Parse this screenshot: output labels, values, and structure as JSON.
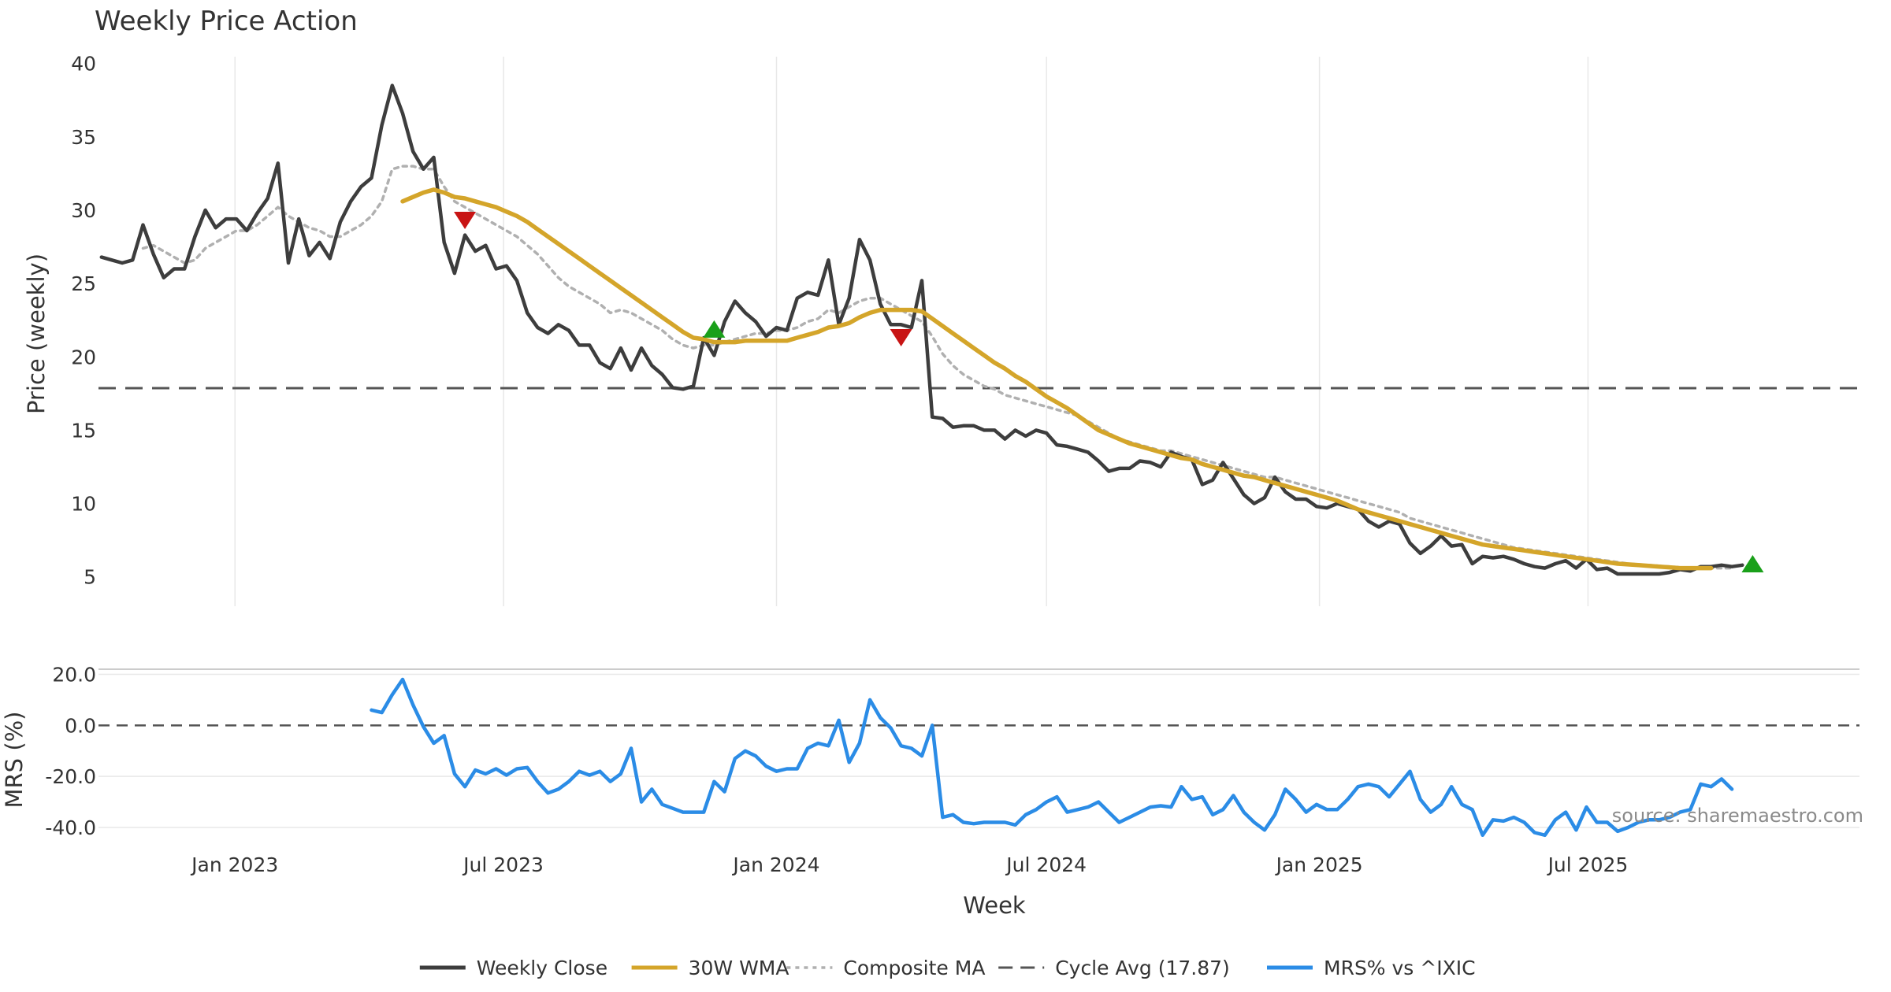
{
  "chart_data": {
    "type": "line",
    "title": "Weekly Price Action",
    "xlabel": "Week",
    "x_ticks": [
      "Jan 2023",
      "Jul 2023",
      "Jan 2024",
      "Jul 2024",
      "Jan 2025",
      "Jul 2025"
    ],
    "x_range": [
      "2022-10-01",
      "2025-12-31"
    ],
    "x_start": "2022-10-03",
    "x_step_days": 7,
    "colors": {
      "close": "#3d3d3d",
      "wma": "#d4a52a",
      "composite": "#b0b0b0",
      "cycle": "#555555",
      "mrs": "#2b8ce6",
      "buy": "#1aa01a",
      "sell": "#c81414",
      "grid": "#e8e8e8"
    },
    "price_panel": {
      "ylabel": "Price (weekly)",
      "ylim": [
        3,
        41
      ],
      "y_ticks": [
        "5",
        "10",
        "15",
        "20",
        "25",
        "30",
        "35",
        "40"
      ],
      "cycle_avg": 17.87,
      "series": [
        {
          "name": "Weekly Close",
          "values": [
            26.8,
            26.6,
            26.4,
            26.6,
            29.0,
            27.0,
            25.4,
            26.0,
            26.0,
            28.2,
            30.0,
            28.8,
            29.4,
            29.4,
            28.6,
            29.8,
            30.8,
            33.2,
            26.4,
            29.4,
            26.9,
            27.8,
            26.7,
            29.2,
            30.6,
            31.6,
            32.2,
            35.8,
            38.5,
            36.6,
            34.0,
            32.8,
            33.6,
            27.8,
            25.7,
            28.3,
            27.2,
            27.6,
            26.0,
            26.2,
            25.2,
            23.0,
            22.0,
            21.6,
            22.2,
            21.8,
            20.8,
            20.8,
            19.6,
            19.2,
            20.6,
            19.1,
            20.6,
            19.4,
            18.8,
            17.9,
            17.8,
            18.0,
            21.3,
            20.1,
            22.4,
            23.8,
            23.0,
            22.4,
            21.4,
            22.0,
            21.8,
            24.0,
            24.4,
            24.2,
            26.6,
            22.2,
            24.0,
            28.0,
            26.6,
            23.6,
            22.2,
            22.2,
            22.0,
            25.2,
            15.9,
            15.8,
            15.2,
            15.3,
            15.3,
            15.0,
            15.0,
            14.4,
            15.0,
            14.6,
            15.0,
            14.8,
            14.0,
            13.9,
            13.7,
            13.5,
            12.9,
            12.2,
            12.4,
            12.4,
            12.9,
            12.8,
            12.5,
            13.5,
            13.2,
            13.0,
            11.3,
            11.6,
            12.8,
            11.7,
            10.6,
            10.0,
            10.4,
            11.8,
            10.8,
            10.3,
            10.3,
            9.8,
            9.7,
            10.0,
            9.8,
            9.6,
            8.8,
            8.4,
            8.8,
            8.6,
            7.3,
            6.6,
            7.1,
            7.8,
            7.1,
            7.2,
            5.9,
            6.4,
            6.3,
            6.4,
            6.2,
            5.9,
            5.7,
            5.6,
            5.9,
            6.1,
            5.6,
            6.2,
            5.5,
            5.6,
            5.2,
            5.2,
            5.2,
            5.2,
            5.2,
            5.3,
            5.5,
            5.4,
            5.7,
            5.7,
            5.8,
            5.7,
            5.8
          ]
        },
        {
          "name": "30W WMA",
          "values": [
            null,
            null,
            null,
            null,
            null,
            null,
            null,
            null,
            null,
            null,
            null,
            null,
            null,
            null,
            null,
            null,
            null,
            null,
            null,
            null,
            null,
            null,
            null,
            null,
            null,
            null,
            null,
            null,
            null,
            30.6,
            30.9,
            31.2,
            31.4,
            31.2,
            30.9,
            30.8,
            30.6,
            30.4,
            30.2,
            29.9,
            29.6,
            29.2,
            28.7,
            28.2,
            27.7,
            27.2,
            26.7,
            26.2,
            25.7,
            25.2,
            24.7,
            24.2,
            23.7,
            23.2,
            22.7,
            22.2,
            21.7,
            21.3,
            21.2,
            21.0,
            21.0,
            21.0,
            21.1,
            21.1,
            21.1,
            21.1,
            21.1,
            21.3,
            21.5,
            21.7,
            22.0,
            22.1,
            22.3,
            22.7,
            23.0,
            23.2,
            23.2,
            23.2,
            23.2,
            23.1,
            22.6,
            22.1,
            21.6,
            21.1,
            20.6,
            20.1,
            19.6,
            19.2,
            18.7,
            18.3,
            17.8,
            17.3,
            16.9,
            16.5,
            16.0,
            15.5,
            15.0,
            14.7,
            14.4,
            14.1,
            13.9,
            13.7,
            13.5,
            13.3,
            13.1,
            13.0,
            12.7,
            12.5,
            12.3,
            12.1,
            11.9,
            11.8,
            11.6,
            11.4,
            11.2,
            11.0,
            10.8,
            10.6,
            10.4,
            10.2,
            9.9,
            9.6,
            9.4,
            9.2,
            9.0,
            8.8,
            8.6,
            8.4,
            8.2,
            8.0,
            7.8,
            7.6,
            7.4,
            7.2,
            7.1,
            7.0,
            6.9,
            6.8,
            6.7,
            6.6,
            6.5,
            6.4,
            6.3,
            6.2,
            6.1,
            6.0,
            5.9,
            5.85,
            5.8,
            5.75,
            5.7,
            5.65,
            5.6,
            5.6,
            5.6,
            5.6
          ]
        },
        {
          "name": "Composite MA",
          "values": [
            null,
            null,
            null,
            null,
            27.4,
            27.6,
            27.2,
            26.8,
            26.4,
            26.6,
            27.4,
            27.8,
            28.2,
            28.6,
            28.6,
            29.0,
            29.6,
            30.2,
            29.6,
            29.2,
            28.8,
            28.6,
            28.2,
            28.2,
            28.6,
            29.0,
            29.6,
            30.6,
            32.8,
            33.0,
            33.0,
            32.8,
            32.8,
            31.6,
            30.6,
            30.2,
            29.8,
            29.4,
            29.0,
            28.6,
            28.2,
            27.6,
            27.0,
            26.2,
            25.4,
            24.8,
            24.4,
            24.0,
            23.6,
            23.0,
            23.2,
            23.0,
            22.6,
            22.2,
            21.8,
            21.2,
            20.8,
            20.6,
            20.8,
            20.8,
            21.0,
            21.2,
            21.4,
            21.6,
            21.6,
            21.8,
            21.8,
            22.0,
            22.4,
            22.6,
            23.2,
            23.0,
            23.4,
            23.8,
            24.0,
            24.0,
            23.6,
            23.2,
            22.8,
            22.4,
            21.4,
            20.2,
            19.4,
            18.8,
            18.4,
            18.0,
            17.8,
            17.4,
            17.2,
            17.0,
            16.8,
            16.6,
            16.4,
            16.2,
            16.0,
            15.6,
            15.2,
            14.8,
            14.4,
            14.2,
            14.0,
            13.8,
            13.6,
            13.6,
            13.4,
            13.2,
            13.0,
            12.8,
            12.6,
            12.4,
            12.2,
            12.0,
            11.8,
            11.8,
            11.6,
            11.4,
            11.2,
            11.0,
            10.8,
            10.6,
            10.4,
            10.2,
            10.0,
            9.8,
            9.6,
            9.4,
            9.0,
            8.8,
            8.6,
            8.4,
            8.2,
            8.0,
            7.8,
            7.6,
            7.4,
            7.2,
            7.0,
            6.9,
            6.8,
            6.7,
            6.6,
            6.5,
            6.4,
            6.3,
            6.2,
            6.1,
            6.0,
            5.9,
            5.85,
            5.8,
            5.75,
            5.7,
            5.65,
            5.6,
            5.6,
            5.6,
            5.6,
            5.6
          ]
        }
      ],
      "signals": [
        {
          "type": "sell",
          "week_index": 35,
          "value": 29.3
        },
        {
          "type": "buy",
          "week_index": 59,
          "value": 21.9
        },
        {
          "type": "sell",
          "week_index": 77,
          "value": 21.3
        },
        {
          "type": "buy",
          "week_index": 159,
          "value": 5.9
        }
      ]
    },
    "mrs_panel": {
      "ylabel": "MRS (%)",
      "ylim": [
        -44,
        22
      ],
      "y_ticks": [
        "20.0",
        "0.0",
        "-20.0",
        "-40.0"
      ],
      "series": {
        "name": "MRS% vs ^IXIC",
        "start_index": 26,
        "values": [
          6.0,
          5.0,
          12.0,
          18.0,
          8.0,
          -0.5,
          -7.0,
          -4.0,
          -19.0,
          -24.0,
          -17.5,
          -19.0,
          -17.0,
          -19.5,
          -17.0,
          -16.5,
          -22.0,
          -26.5,
          -25.0,
          -22.0,
          -18.0,
          -19.5,
          -18.0,
          -22.0,
          -19.0,
          -9.0,
          -30.0,
          -25.0,
          -31.0,
          -32.5,
          -34.0,
          -34.0,
          -34.0,
          -22.0,
          -26.0,
          -13.0,
          -10.0,
          -12.0,
          -16.0,
          -18.0,
          -17.0,
          -17.0,
          -9.0,
          -7.0,
          -8.0,
          2.0,
          -14.5,
          -7.0,
          10.0,
          3.0,
          -1.0,
          -8.0,
          -9.0,
          -12.0,
          0.0,
          -36.0,
          -35.0,
          -38.0,
          -38.5,
          -38.0,
          -38.0,
          -38.0,
          -39.0,
          -35.0,
          -33.0,
          -30.0,
          -28.0,
          -34.0,
          -33.0,
          -32.0,
          -30.0,
          -34.0,
          -38.0,
          -36.0,
          -34.0,
          -32.0,
          -31.5,
          -32.0,
          -24.0,
          -29.0,
          -28.0,
          -35.0,
          -33.0,
          -27.5,
          -34.0,
          -38.0,
          -41.0,
          -35.0,
          -25.0,
          -29.0,
          -34.0,
          -31.0,
          -33.0,
          -33.0,
          -29.0,
          -24.0,
          -23.0,
          -24.0,
          -28.0,
          -23.0,
          -18.0,
          -29.0,
          -34.0,
          -31.0,
          -24.0,
          -31.0,
          -33.0,
          -43.0,
          -37.0,
          -37.5,
          -36.0,
          -38.0,
          -42.0,
          -43.0,
          -37.0,
          -34.0,
          -41.0,
          -32.0,
          -38.0,
          -38.0,
          -41.5,
          -40.0,
          -38.0,
          -37.0,
          -37.0,
          -36.0,
          -34.0,
          -33.0,
          -23.0,
          -24.0,
          -21.0,
          -25.0
        ]
      }
    },
    "legend": {
      "placement": "bottom-center",
      "items": [
        {
          "label": "Weekly Close",
          "style": "solid",
          "color": "#3d3d3d"
        },
        {
          "label": "30W WMA",
          "style": "solid",
          "color": "#d4a52a"
        },
        {
          "label": "Composite MA",
          "style": "dotted",
          "color": "#b0b0b0"
        },
        {
          "label": "Cycle Avg (17.87)",
          "style": "dashed",
          "color": "#555555"
        },
        {
          "label": "MRS% vs ^IXIC",
          "style": "solid",
          "color": "#2b8ce6"
        }
      ]
    },
    "source": "source: sharemaestro.com",
    "grid": true
  }
}
